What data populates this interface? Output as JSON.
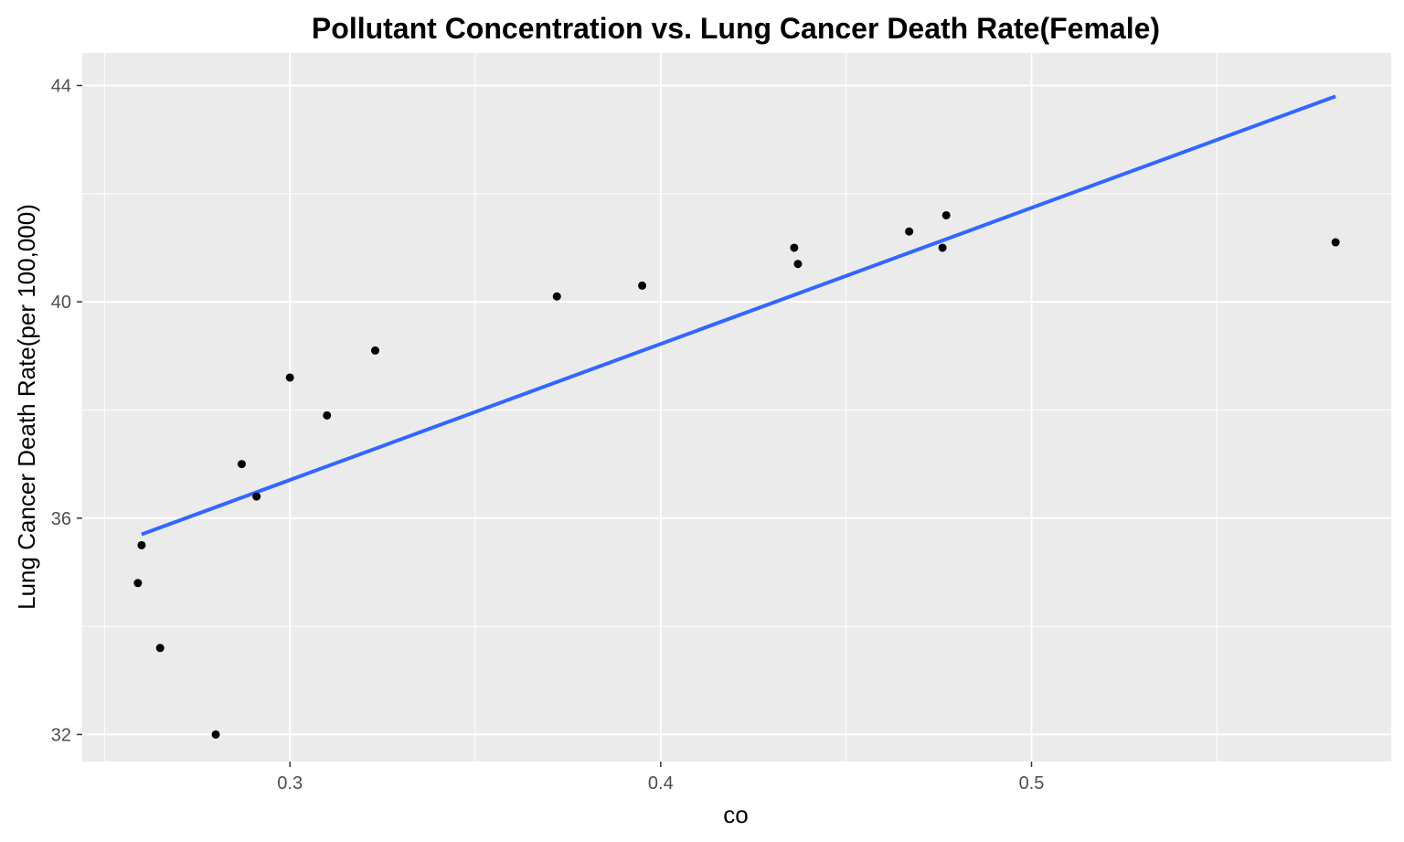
{
  "chart_data": {
    "type": "scatter",
    "title": "Pollutant Concentration vs. Lung Cancer Death Rate(Female)",
    "xlabel": "co",
    "ylabel": "Lung Cancer Death Rate(per 100,000)",
    "xlim": [
      0.244,
      0.597
    ],
    "ylim": [
      31.5,
      44.6
    ],
    "x_ticks": [
      0.3,
      0.4,
      0.5
    ],
    "x_tick_labels": [
      "0.3",
      "0.4",
      "0.5"
    ],
    "y_ticks": [
      32,
      36,
      40,
      44
    ],
    "y_tick_labels": [
      "32",
      "36",
      "40",
      "44"
    ],
    "x_minor_grid": [
      0.25,
      0.35,
      0.45,
      0.55
    ],
    "y_minor_grid": [
      34,
      38,
      42
    ],
    "grid": true,
    "panel_background": "#ebebeb",
    "grid_color": "#ffffff",
    "points": [
      {
        "x": 0.259,
        "y": 34.8
      },
      {
        "x": 0.26,
        "y": 35.5
      },
      {
        "x": 0.265,
        "y": 33.6
      },
      {
        "x": 0.28,
        "y": 32.0
      },
      {
        "x": 0.287,
        "y": 37.0
      },
      {
        "x": 0.291,
        "y": 36.4
      },
      {
        "x": 0.3,
        "y": 38.6
      },
      {
        "x": 0.31,
        "y": 37.9
      },
      {
        "x": 0.323,
        "y": 39.1
      },
      {
        "x": 0.372,
        "y": 40.1
      },
      {
        "x": 0.395,
        "y": 40.3
      },
      {
        "x": 0.436,
        "y": 41.0
      },
      {
        "x": 0.437,
        "y": 40.7
      },
      {
        "x": 0.467,
        "y": 41.3
      },
      {
        "x": 0.476,
        "y": 41.0
      },
      {
        "x": 0.477,
        "y": 41.6
      },
      {
        "x": 0.582,
        "y": 41.1
      }
    ],
    "point_color": "#000000",
    "trend_line": {
      "type": "linear",
      "x": [
        0.26,
        0.582
      ],
      "y": [
        35.7,
        43.8
      ],
      "color": "#3366ff"
    }
  }
}
